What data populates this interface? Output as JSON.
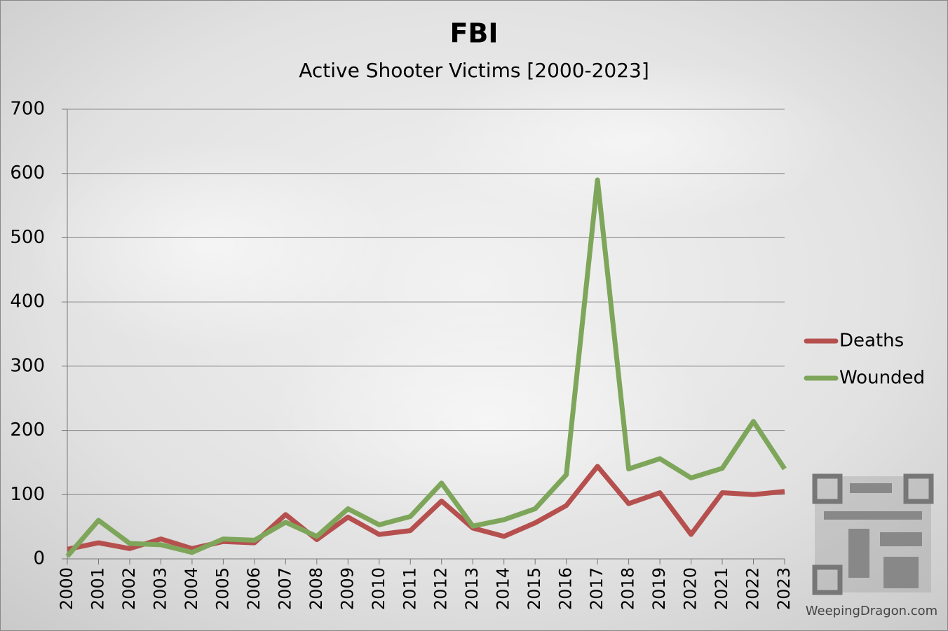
{
  "chart_data": {
    "type": "line",
    "title": "FBI",
    "subtitle": "Active Shooter Victims [2000-2023]",
    "categories": [
      "2000",
      "2001",
      "2002",
      "2003",
      "2004",
      "2005",
      "2006",
      "2007",
      "2008",
      "2009",
      "2010",
      "2011",
      "2012",
      "2013",
      "2014",
      "2015",
      "2016",
      "2017",
      "2018",
      "2019",
      "2020",
      "2021",
      "2022",
      "2023"
    ],
    "series": [
      {
        "name": "Deaths",
        "color": "#b5504e",
        "values": [
          15,
          25,
          16,
          31,
          16,
          27,
          25,
          69,
          30,
          65,
          38,
          44,
          90,
          48,
          35,
          56,
          83,
          144,
          86,
          103,
          38,
          103,
          100,
          105
        ]
      },
      {
        "name": "Wounded",
        "color": "#7ea65a",
        "values": [
          4,
          60,
          24,
          22,
          10,
          31,
          29,
          57,
          35,
          78,
          53,
          66,
          118,
          51,
          61,
          78,
          131,
          590,
          140,
          156,
          126,
          141,
          214,
          140
        ]
      }
    ],
    "ylim": [
      0,
      700
    ],
    "yticks": [
      0,
      100,
      200,
      300,
      400,
      500,
      600,
      700
    ],
    "grid": true,
    "legend": "right",
    "watermark": "WeepingDragon.com"
  }
}
